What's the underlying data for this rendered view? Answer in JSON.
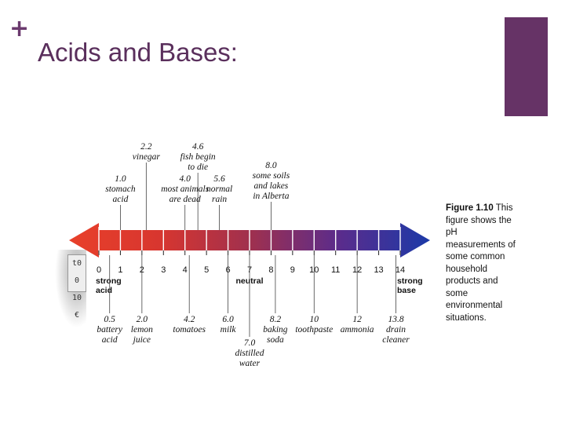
{
  "slide": {
    "plus": "+",
    "title": "Acids and Bases:"
  },
  "figure": {
    "caption_label": "Figure 1.10",
    "caption_text": "This figure shows the pH measurements of some common household products and some environmental situations.",
    "mini_top": "t0 0",
    "mini_bottom": "10 €",
    "ticks": [
      "0",
      "1",
      "2",
      "3",
      "4",
      "5",
      "6",
      "7",
      "8",
      "9",
      "10",
      "11",
      "12",
      "13",
      "14"
    ],
    "end_labels": {
      "left": [
        "strong",
        "acid"
      ],
      "center": "neutral",
      "right": [
        "strong",
        "base"
      ]
    },
    "top_labels": [
      {
        "ph": 2.2,
        "lines": [
          "2.2",
          "vinegar"
        ]
      },
      {
        "ph": 4.6,
        "lines": [
          "4.6",
          "fish begin",
          "to die"
        ]
      },
      {
        "ph": 1.0,
        "lines": [
          "1.0",
          "stomach",
          "acid"
        ]
      },
      {
        "ph": 4.0,
        "lines": [
          "4.0",
          "most animals",
          "are dead"
        ]
      },
      {
        "ph": 5.6,
        "lines": [
          "5.6",
          "normal",
          "rain"
        ]
      },
      {
        "ph": 8.0,
        "lines": [
          "8.0",
          "some soils",
          "and lakes",
          "in Alberta"
        ]
      }
    ],
    "bottom_labels": [
      {
        "ph": 0.5,
        "lines": [
          "0.5",
          "battery",
          "acid"
        ]
      },
      {
        "ph": 2.0,
        "lines": [
          "2.0",
          "lemon",
          "juice"
        ]
      },
      {
        "ph": 4.2,
        "lines": [
          "4.2",
          "tomatoes"
        ]
      },
      {
        "ph": 6.0,
        "lines": [
          "6.0",
          "milk"
        ]
      },
      {
        "ph": 7.0,
        "lines": [
          "7.0",
          "distilled",
          "water"
        ]
      },
      {
        "ph": 8.2,
        "lines": [
          "8.2",
          "baking",
          "soda"
        ]
      },
      {
        "ph": 10,
        "lines": [
          "10",
          "toothpaste"
        ]
      },
      {
        "ph": 12,
        "lines": [
          "12",
          "ammonia"
        ]
      },
      {
        "ph": 13.8,
        "lines": [
          "13.8",
          "drain",
          "cleaner"
        ]
      }
    ]
  }
}
